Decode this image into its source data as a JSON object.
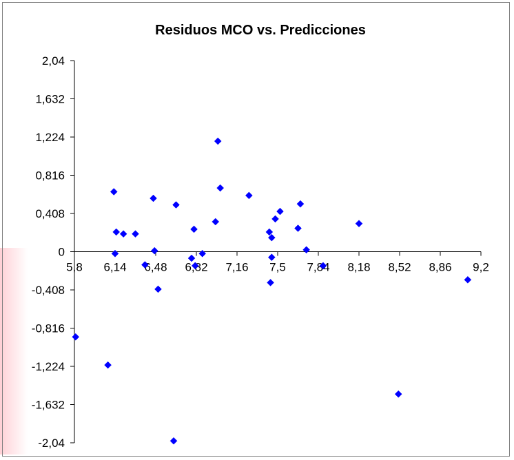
{
  "chart_data": {
    "type": "scatter",
    "title": "Residuos MCO vs. Predicciones",
    "xlabel": "",
    "ylabel": "",
    "xlim": [
      5.8,
      9.2
    ],
    "ylim": [
      -2.04,
      2.04
    ],
    "x_ticks": [
      "5,8",
      "6,14",
      "6,48",
      "6,82",
      "7,16",
      "7,5",
      "7,84",
      "8,18",
      "8,52",
      "8,86",
      "9,2"
    ],
    "y_ticks": [
      "2,04",
      "1,632",
      "1,224",
      "0,816",
      "0,408",
      "0",
      "-0,408",
      "-0,816",
      "-1,224",
      "-1,632",
      "-2,04"
    ],
    "legend": "none",
    "grid": false,
    "marker_color": "#0000ff",
    "series": [
      {
        "x": [
          5.81,
          6.08,
          6.13,
          6.14,
          6.15,
          6.21,
          6.31,
          6.39,
          6.46,
          6.47,
          6.5,
          6.63,
          6.65,
          6.78,
          6.8,
          6.81,
          6.87,
          6.98,
          7.0,
          7.02,
          7.26,
          7.43,
          7.44,
          7.45,
          7.45,
          7.48,
          7.52,
          7.67,
          7.69,
          7.74,
          7.88,
          8.18,
          8.51,
          9.09
        ],
        "y": [
          -0.91,
          -1.21,
          0.64,
          -0.02,
          0.21,
          0.19,
          0.19,
          -0.14,
          0.57,
          0.01,
          -0.4,
          -2.02,
          0.5,
          -0.07,
          0.24,
          -0.15,
          -0.02,
          0.32,
          1.18,
          0.68,
          0.6,
          0.21,
          -0.33,
          0.15,
          -0.06,
          0.35,
          0.43,
          0.25,
          0.51,
          0.02,
          -0.15,
          0.3,
          -1.52,
          -0.3
        ]
      }
    ]
  }
}
